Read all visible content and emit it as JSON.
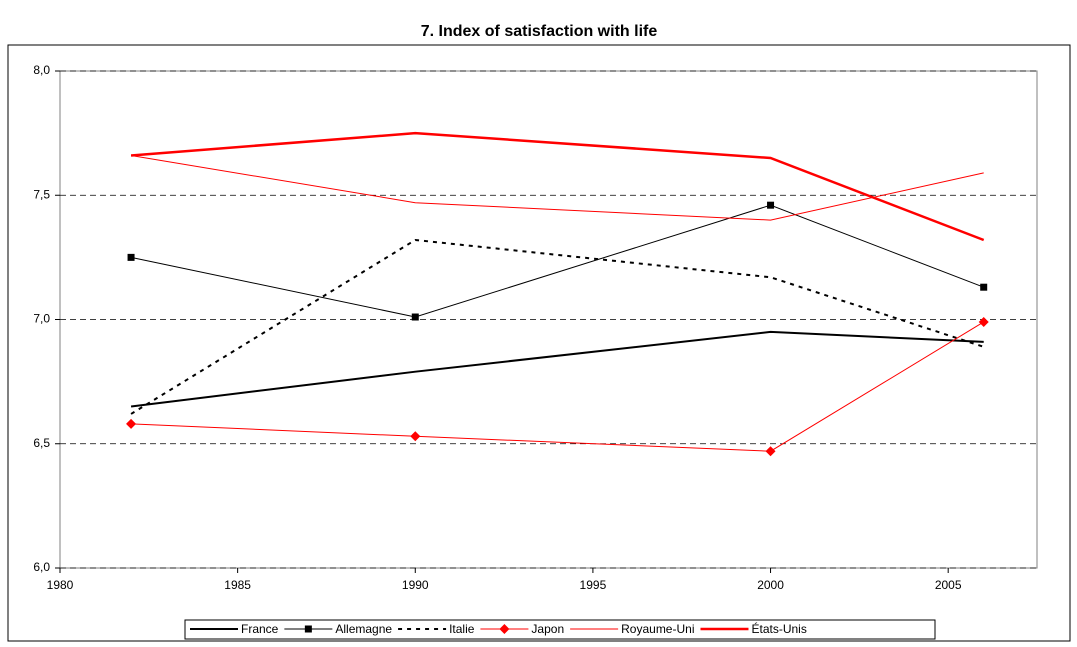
{
  "chart_data": {
    "type": "line",
    "title": "7. Index of satisfaction with life",
    "x": [
      1982,
      1990,
      2000,
      2006
    ],
    "series": [
      {
        "name": "France",
        "color": "#000000",
        "width": 2,
        "dash": "none",
        "marker": "none",
        "values": [
          6.65,
          6.79,
          6.95,
          6.91
        ]
      },
      {
        "name": "Allemagne",
        "color": "#000000",
        "width": 1,
        "dash": "none",
        "marker": "square",
        "values": [
          7.25,
          7.01,
          7.46,
          7.13
        ]
      },
      {
        "name": "Italie",
        "color": "#000000",
        "width": 2,
        "dash": "dashed",
        "marker": "none",
        "values": [
          6.62,
          7.32,
          7.17,
          6.89
        ]
      },
      {
        "name": "Japon",
        "color": "#ff0000",
        "width": 1,
        "dash": "none",
        "marker": "diamond",
        "values": [
          6.58,
          6.53,
          6.47,
          6.99
        ]
      },
      {
        "name": "Royaume-Uni",
        "color": "#ff0000",
        "width": 1,
        "dash": "none",
        "marker": "none",
        "values": [
          7.66,
          7.47,
          7.4,
          7.59
        ]
      },
      {
        "name": "États-Unis",
        "color": "#ff0000",
        "width": 2.5,
        "dash": "none",
        "marker": "none",
        "values": [
          7.66,
          7.75,
          7.65,
          7.32
        ]
      }
    ],
    "xlim": [
      1980,
      2007.5
    ],
    "xticks": [
      1980,
      1985,
      1990,
      1995,
      2000,
      2005
    ],
    "ylim": [
      6.0,
      8.0
    ],
    "yticks": [
      {
        "value": 6.0,
        "label": "6,0"
      },
      {
        "value": 6.5,
        "label": "6,5"
      },
      {
        "value": 7.0,
        "label": "7,0"
      },
      {
        "value": 7.5,
        "label": "7,5"
      },
      {
        "value": 8.0,
        "label": "8,0"
      }
    ],
    "grid": true,
    "legend": "bottom"
  }
}
